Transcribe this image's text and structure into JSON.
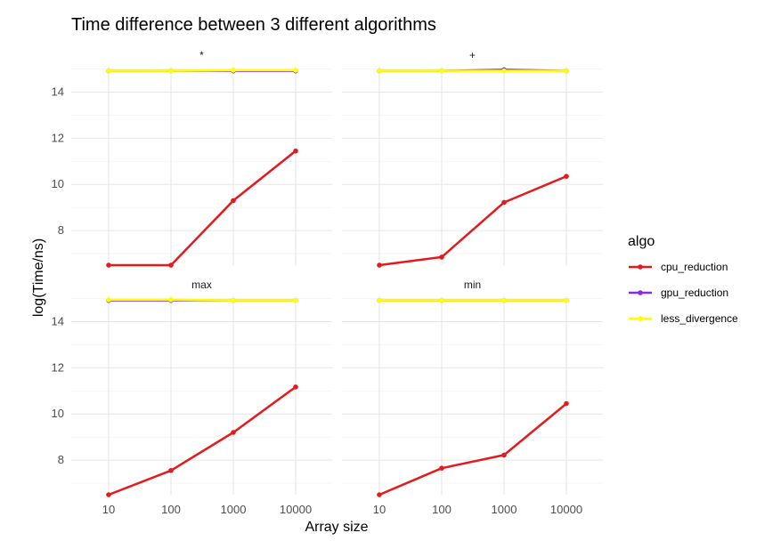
{
  "chart_data": {
    "type": "line",
    "title": "Time difference between 3 different algorithms",
    "xlabel": "Array size",
    "ylabel": "log(Time/ns)",
    "x_scale": "log10",
    "x": [
      10,
      100,
      1000,
      10000
    ],
    "x_tick_labels": [
      "10",
      "100",
      "1000",
      "10000"
    ],
    "ylim": [
      6.5,
      15.1
    ],
    "y_ticks": [
      8,
      10,
      12,
      14
    ],
    "grid": true,
    "legend": {
      "title": "algo",
      "position": "right",
      "entries": [
        "cpu_reduction",
        "gpu_reduction",
        "less_divergence"
      ]
    },
    "colors": {
      "cpu_reduction": "#e41a1c",
      "gpu_reduction": "#8a2be2",
      "less_divergence": "#ffff00"
    },
    "facets": [
      {
        "label": "*",
        "series": [
          {
            "name": "cpu_reduction",
            "values": [
              6.5,
              6.5,
              9.3,
              11.45
            ]
          },
          {
            "name": "gpu_reduction",
            "values": [
              14.92,
              14.92,
              14.92,
              14.92
            ]
          },
          {
            "name": "less_divergence",
            "values": [
              14.92,
              14.92,
              14.95,
              14.95
            ]
          }
        ]
      },
      {
        "label": "+",
        "series": [
          {
            "name": "cpu_reduction",
            "values": [
              6.5,
              6.85,
              9.22,
              10.35
            ]
          },
          {
            "name": "gpu_reduction",
            "values": [
              14.92,
              14.92,
              14.97,
              14.92
            ]
          },
          {
            "name": "less_divergence",
            "values": [
              14.92,
              14.92,
              14.92,
              14.92
            ]
          }
        ]
      },
      {
        "label": "max",
        "series": [
          {
            "name": "cpu_reduction",
            "values": [
              6.5,
              7.55,
              9.2,
              11.17
            ]
          },
          {
            "name": "gpu_reduction",
            "values": [
              14.92,
              14.92,
              14.92,
              14.92
            ]
          },
          {
            "name": "less_divergence",
            "values": [
              14.95,
              14.95,
              14.92,
              14.92
            ]
          }
        ]
      },
      {
        "label": "min",
        "series": [
          {
            "name": "cpu_reduction",
            "values": [
              6.5,
              7.65,
              8.22,
              10.45
            ]
          },
          {
            "name": "gpu_reduction",
            "values": [
              14.92,
              14.92,
              14.92,
              14.92
            ]
          },
          {
            "name": "less_divergence",
            "values": [
              14.92,
              14.92,
              14.92,
              14.92
            ]
          }
        ]
      }
    ]
  }
}
